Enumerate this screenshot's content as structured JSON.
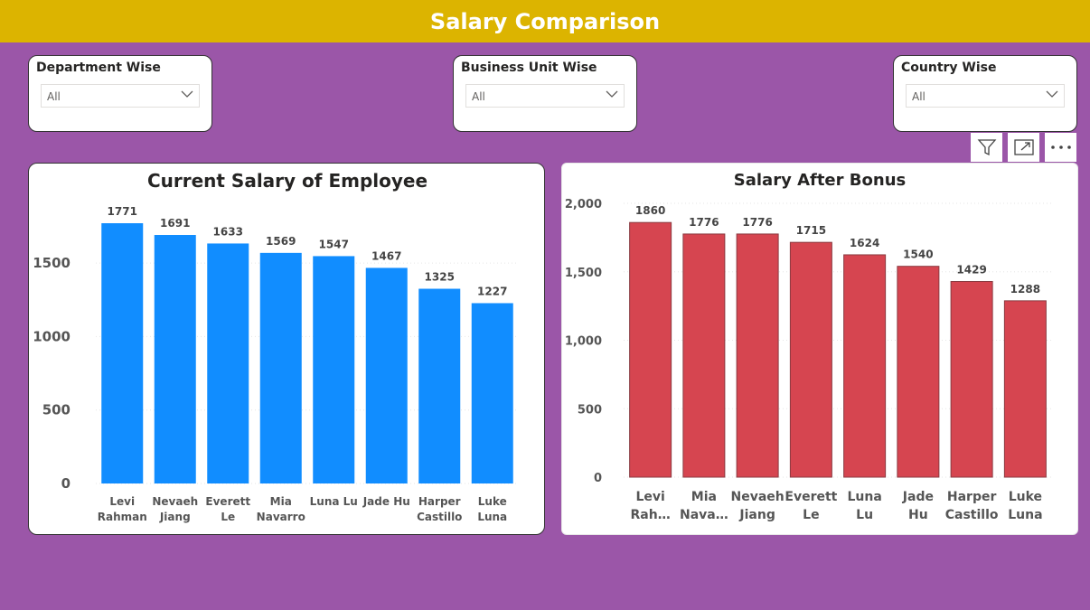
{
  "header": {
    "title": "Salary Comparison"
  },
  "slicers": [
    {
      "label": "Department Wise",
      "value": "All"
    },
    {
      "label": "Business Unit Wise",
      "value": "All"
    },
    {
      "label": "Country Wise",
      "value": "All"
    }
  ],
  "toolbar": {
    "icons": [
      "filter-icon",
      "focus-mode-icon",
      "more-options-icon"
    ]
  },
  "colors": {
    "banner": "#dcb400",
    "background": "#9b56a8",
    "current": "#118dff",
    "bonus": "#d64550"
  },
  "chart_data": [
    {
      "type": "bar",
      "title": "Current Salary of Employee",
      "categories": [
        [
          "Levi",
          "Rahman"
        ],
        [
          "Nevaeh",
          "Jiang"
        ],
        [
          "Everett",
          "Le"
        ],
        [
          "Mia",
          "Navarro"
        ],
        [
          "Luna Lu"
        ],
        [
          "Jade Hu"
        ],
        [
          "Harper",
          "Castillo"
        ],
        [
          "Luke",
          "Luna"
        ]
      ],
      "values": [
        1771,
        1691,
        1633,
        1569,
        1547,
        1467,
        1325,
        1227
      ],
      "data_labels": [
        "1771",
        "1691",
        "1633",
        "1569",
        "1547",
        "1467",
        "1325",
        "1227"
      ],
      "yticks": [
        0,
        500,
        1000,
        1500
      ],
      "ytick_labels": [
        "0",
        "500",
        "1000",
        "1500"
      ],
      "ylim": [
        0,
        1771
      ],
      "xlabel": "",
      "ylabel": "",
      "grid": true
    },
    {
      "type": "bar",
      "title": "Salary After Bonus",
      "categories": [
        [
          "Levi",
          "Rah…"
        ],
        [
          "Mia",
          "Nava…"
        ],
        [
          "Nevaeh",
          "Jiang"
        ],
        [
          "Everett",
          "Le"
        ],
        [
          "Luna",
          "Lu"
        ],
        [
          "Jade",
          "Hu"
        ],
        [
          "Harper",
          "Castillo"
        ],
        [
          "Luke",
          "Luna"
        ]
      ],
      "values": [
        1860,
        1776,
        1776,
        1715,
        1624,
        1540,
        1429,
        1288
      ],
      "data_labels": [
        "1860",
        "1776",
        "1776",
        "1715",
        "1624",
        "1540",
        "1429",
        "1288"
      ],
      "yticks": [
        0,
        500,
        1000,
        1500,
        2000
      ],
      "ytick_labels": [
        "0",
        "500",
        "1,000",
        "1,500",
        "2,000"
      ],
      "ylim": [
        0,
        2000
      ],
      "xlabel": "",
      "ylabel": "",
      "grid": true
    }
  ]
}
